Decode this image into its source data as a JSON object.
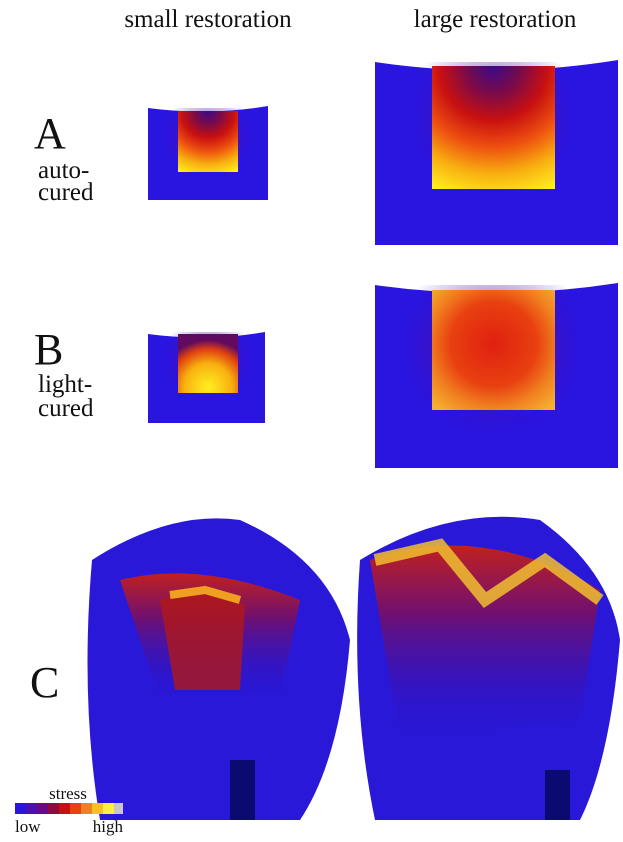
{
  "header": {
    "columns": [
      "small restoration",
      "large restoration"
    ]
  },
  "rows": [
    {
      "label": "A",
      "sublabel": [
        "auto-",
        "cured"
      ]
    },
    {
      "label": "B",
      "sublabel": [
        "light-",
        "cured"
      ]
    },
    {
      "label": "C"
    }
  ],
  "legend": {
    "title": "stress",
    "low": "low",
    "high": "high"
  }
}
